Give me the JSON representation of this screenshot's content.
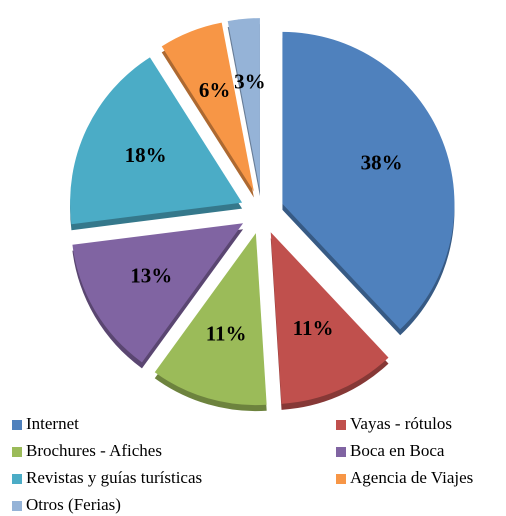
{
  "chart_data": {
    "type": "pie",
    "categories": [
      "Internet",
      "Vayas - rótulos",
      "Brochures - Afiches",
      "Boca en Boca",
      "Revistas y guías turísticas",
      "Agencia de Viajes",
      "Otros (Ferias)"
    ],
    "values": [
      38,
      11,
      11,
      13,
      18,
      6,
      3
    ],
    "value_labels": [
      "38%",
      "11%",
      "11%",
      "13%",
      "18%",
      "6%",
      "3%"
    ],
    "colors": [
      "#4F81BD",
      "#C0504D",
      "#9BBB59",
      "#8064A2",
      "#4BACC6",
      "#F79646",
      "#95B3D7"
    ],
    "exploded": true,
    "legend": "bottom"
  }
}
